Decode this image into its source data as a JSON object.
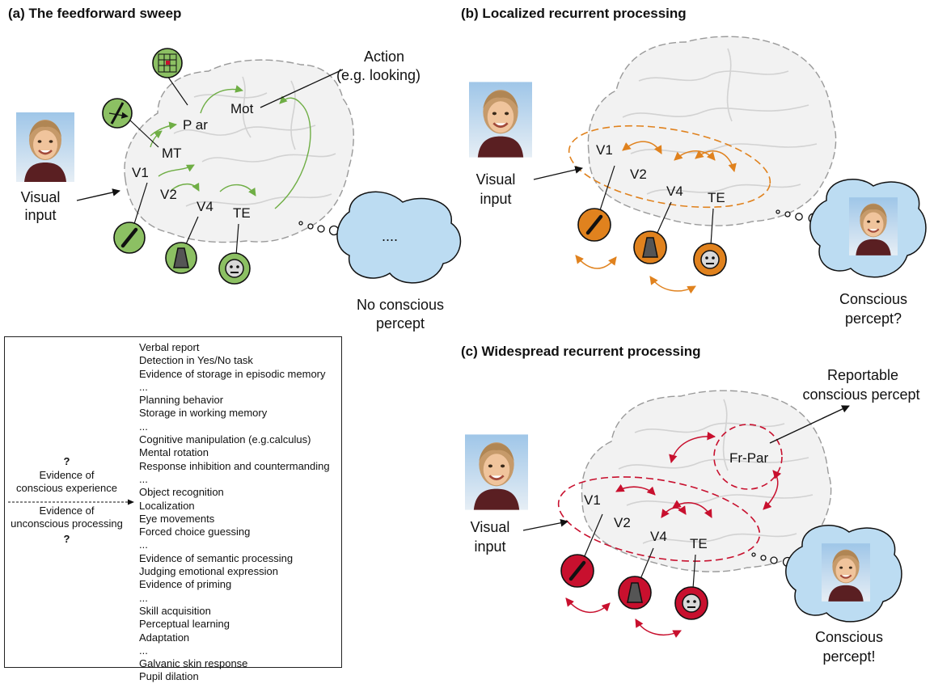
{
  "panels": {
    "a": {
      "title": "(a) The feedforward sweep",
      "areas": [
        "P ar",
        "Mot",
        "MT",
        "V1",
        "V2",
        "V4",
        "TE"
      ],
      "input_label": [
        "Visual",
        "input"
      ],
      "action_label": [
        "Action",
        "(e.g. looking)"
      ],
      "thought_text": "....",
      "percept_label": [
        "No conscious",
        "percept"
      ]
    },
    "b": {
      "title": "(b) Localized recurrent processing",
      "areas": [
        "V1",
        "V2",
        "V4",
        "TE"
      ],
      "input_label": [
        "Visual",
        "input"
      ],
      "percept_label": [
        "Conscious",
        "percept?"
      ]
    },
    "c": {
      "title": "(c) Widespread recurrent processing",
      "areas": [
        "Fr-Par",
        "V1",
        "V2",
        "V4",
        "TE"
      ],
      "input_label": [
        "Visual",
        "input"
      ],
      "report_label": [
        "Reportable",
        "conscious percept"
      ],
      "percept_label": [
        "Conscious",
        "percept!"
      ]
    }
  },
  "evidence": {
    "question_top": "?",
    "conscious_label": [
      "Evidence of",
      "conscious experience"
    ],
    "unconscious_label": [
      "Evidence of",
      "unconscious processing"
    ],
    "question_bottom": "?",
    "items": [
      "Verbal report",
      "Detection in Yes/No task",
      "Evidence of storage in episodic memory",
      "...",
      "Planning behavior",
      "Storage in working memory",
      "...",
      "Cognitive manipulation (e.g.calculus)",
      "Mental rotation",
      "Response inhibition and countermanding",
      "...",
      "Object recognition",
      "Localization",
      "Eye movements",
      "Forced choice guessing",
      "...",
      "Evidence of semantic processing",
      "Judging emotional expression",
      "Evidence of priming",
      "...",
      "Skill acquisition",
      "Perceptual learning",
      "Adaptation",
      "...",
      "Galvanic skin response",
      "Pupil dilation"
    ]
  },
  "colors": {
    "feedforward_green": "#8cc063",
    "localized_orange": "#e0821e",
    "widespread_red": "#c8102e",
    "thought_blue": "#bcdcf2",
    "brain_outline": "#9a9a9a"
  }
}
